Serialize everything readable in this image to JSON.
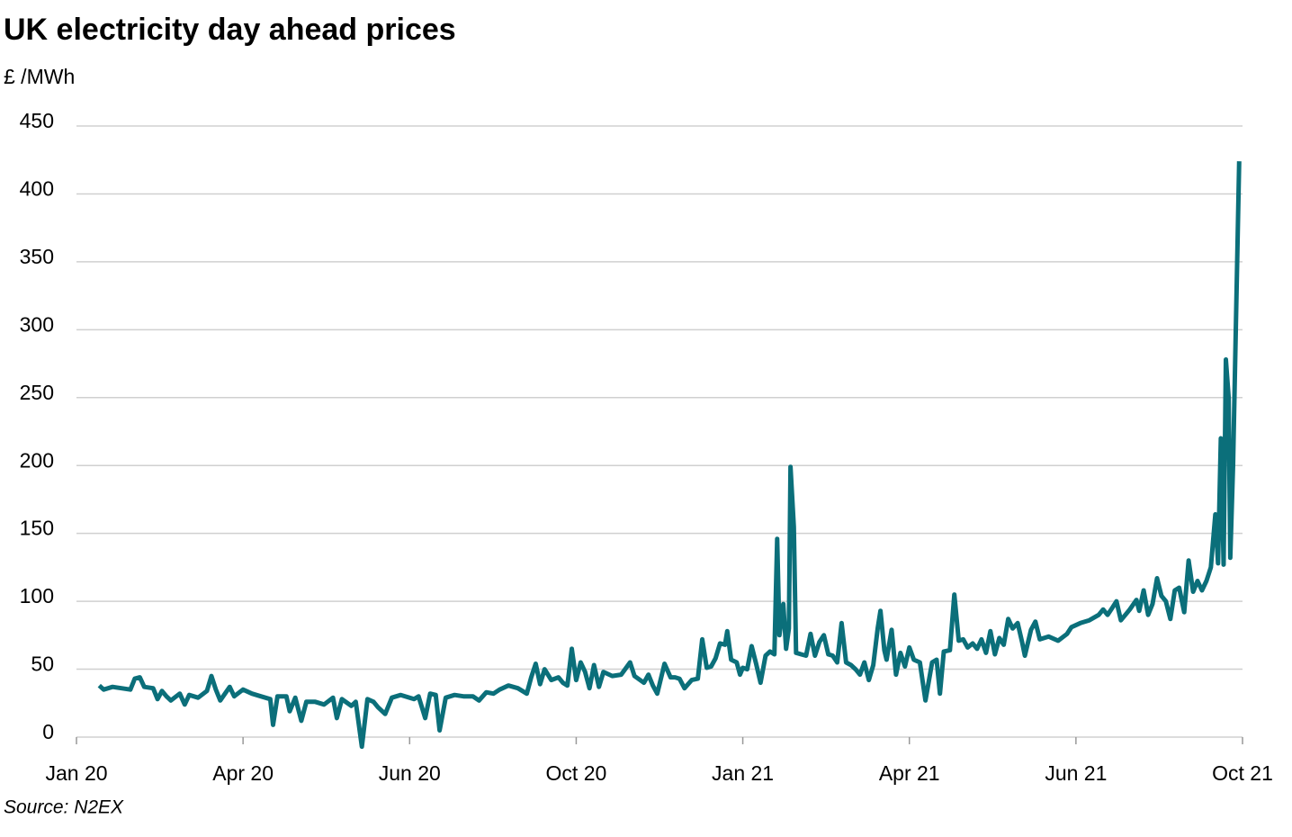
{
  "chart_data": {
    "type": "line",
    "title": "UK electricity day ahead prices",
    "subtitle": "£ /MWh",
    "source": "Source: N2EX",
    "color": "#0b6f7a",
    "grid": true,
    "xlim": [
      0,
      21
    ],
    "ylim": [
      0,
      450
    ],
    "xticks": [
      {
        "value": 0,
        "label": "Jan 20"
      },
      {
        "value": 3,
        "label": "Apr 20"
      },
      {
        "value": 6,
        "label": "Jun 20"
      },
      {
        "value": 9,
        "label": "Oct 20"
      },
      {
        "value": 12,
        "label": "Jan 21"
      },
      {
        "value": 15,
        "label": "Apr 21"
      },
      {
        "value": 18,
        "label": "Jun 21"
      },
      {
        "value": 21,
        "label": "Oct 21"
      }
    ],
    "yticks": [
      0,
      50,
      100,
      150,
      200,
      250,
      300,
      350,
      400,
      450
    ],
    "x": [
      0.41,
      0.49,
      0.65,
      0.81,
      0.97,
      1.05,
      1.14,
      1.22,
      1.38,
      1.46,
      1.54,
      1.62,
      1.7,
      1.86,
      1.95,
      2.03,
      2.19,
      2.35,
      2.43,
      2.51,
      2.59,
      2.76,
      2.84,
      3.0,
      3.16,
      3.32,
      3.49,
      3.54,
      3.62,
      3.78,
      3.84,
      3.94,
      4.05,
      4.14,
      4.3,
      4.46,
      4.62,
      4.69,
      4.78,
      4.95,
      5.03,
      5.14,
      5.24,
      5.35,
      5.43,
      5.56,
      5.68,
      5.84,
      6.08,
      6.16,
      6.28,
      6.37,
      6.47,
      6.54,
      6.65,
      6.81,
      6.97,
      7.14,
      7.25,
      7.38,
      7.51,
      7.62,
      7.78,
      7.95,
      8.11,
      8.19,
      8.27,
      8.35,
      8.43,
      8.55,
      8.68,
      8.76,
      8.84,
      8.92,
      9.0,
      9.08,
      9.16,
      9.24,
      9.32,
      9.41,
      9.49,
      9.65,
      9.81,
      9.97,
      10.05,
      10.22,
      10.3,
      10.38,
      10.46,
      10.59,
      10.7,
      10.78,
      10.86,
      10.95,
      11.08,
      11.19,
      11.27,
      11.35,
      11.43,
      11.51,
      11.59,
      11.68,
      11.72,
      11.79,
      11.89,
      11.95,
      12.0,
      12.08,
      12.16,
      12.24,
      12.32,
      12.41,
      12.49,
      12.57,
      12.62,
      12.66,
      12.73,
      12.78,
      12.83,
      12.86,
      12.92,
      12.96,
      13.05,
      13.14,
      13.22,
      13.3,
      13.38,
      13.46,
      13.54,
      13.62,
      13.7,
      13.78,
      13.86,
      13.95,
      14.03,
      14.11,
      14.19,
      14.27,
      14.35,
      14.43,
      14.48,
      14.55,
      14.59,
      14.68,
      14.76,
      14.84,
      14.92,
      15.0,
      15.08,
      15.19,
      15.29,
      15.41,
      15.49,
      15.55,
      15.62,
      15.73,
      15.81,
      15.89,
      15.97,
      16.05,
      16.14,
      16.22,
      16.3,
      16.38,
      16.46,
      16.54,
      16.62,
      16.7,
      16.78,
      16.86,
      16.95,
      17.03,
      17.08,
      17.19,
      17.27,
      17.35,
      17.51,
      17.68,
      17.84,
      17.92,
      18.08,
      18.24,
      18.41,
      18.49,
      18.57,
      18.65,
      18.73,
      18.81,
      18.89,
      18.97,
      19.09,
      19.14,
      19.22,
      19.3,
      19.38,
      19.46,
      19.54,
      19.62,
      19.7,
      19.78,
      19.86,
      19.95,
      20.03,
      20.11,
      20.19,
      20.27,
      20.35,
      20.43,
      20.51,
      20.56,
      20.61,
      20.66,
      20.7,
      20.75,
      20.78,
      20.83,
      20.88,
      20.94
    ],
    "values": [
      38,
      35,
      37,
      36,
      35,
      43,
      44,
      37,
      36,
      28,
      34,
      30,
      27,
      32,
      24,
      31,
      29,
      34,
      45,
      35,
      27,
      37,
      30,
      35,
      32,
      30,
      28,
      9,
      30,
      30,
      19,
      29,
      12,
      26,
      26,
      24,
      29,
      14,
      28,
      23,
      26,
      -7,
      28,
      26,
      22,
      17,
      29,
      31,
      28,
      30,
      14,
      32,
      31,
      5,
      29,
      31,
      30,
      30,
      27,
      33,
      32,
      35,
      38,
      36,
      32,
      44,
      54,
      39,
      50,
      42,
      44,
      40,
      38,
      65,
      42,
      55,
      48,
      36,
      53,
      37,
      48,
      45,
      46,
      55,
      45,
      40,
      46,
      38,
      32,
      54,
      44,
      44,
      43,
      36,
      42,
      43,
      72,
      51,
      52,
      58,
      69,
      68,
      78,
      57,
      55,
      46,
      51,
      50,
      67,
      54,
      40,
      60,
      63,
      61,
      146,
      75,
      98,
      65,
      80,
      199,
      155,
      62,
      61,
      60,
      76,
      60,
      70,
      75,
      61,
      60,
      55,
      84,
      55,
      53,
      50,
      46,
      55,
      42,
      53,
      80,
      93,
      64,
      57,
      79,
      46,
      62,
      52,
      66,
      57,
      55,
      27,
      55,
      57,
      32,
      63,
      64,
      105,
      71,
      72,
      66,
      69,
      65,
      72,
      62,
      78,
      61,
      73,
      68,
      87,
      80,
      84,
      70,
      60,
      79,
      85,
      72,
      74,
      71,
      76,
      81,
      84,
      86,
      90,
      94,
      90,
      95,
      100,
      86,
      90,
      94,
      101,
      93,
      108,
      90,
      98,
      117,
      104,
      100,
      87,
      108,
      110,
      92,
      130,
      107,
      115,
      108,
      115,
      125,
      164,
      128,
      220,
      127,
      278,
      250,
      132,
      200,
      302,
      424
    ]
  }
}
